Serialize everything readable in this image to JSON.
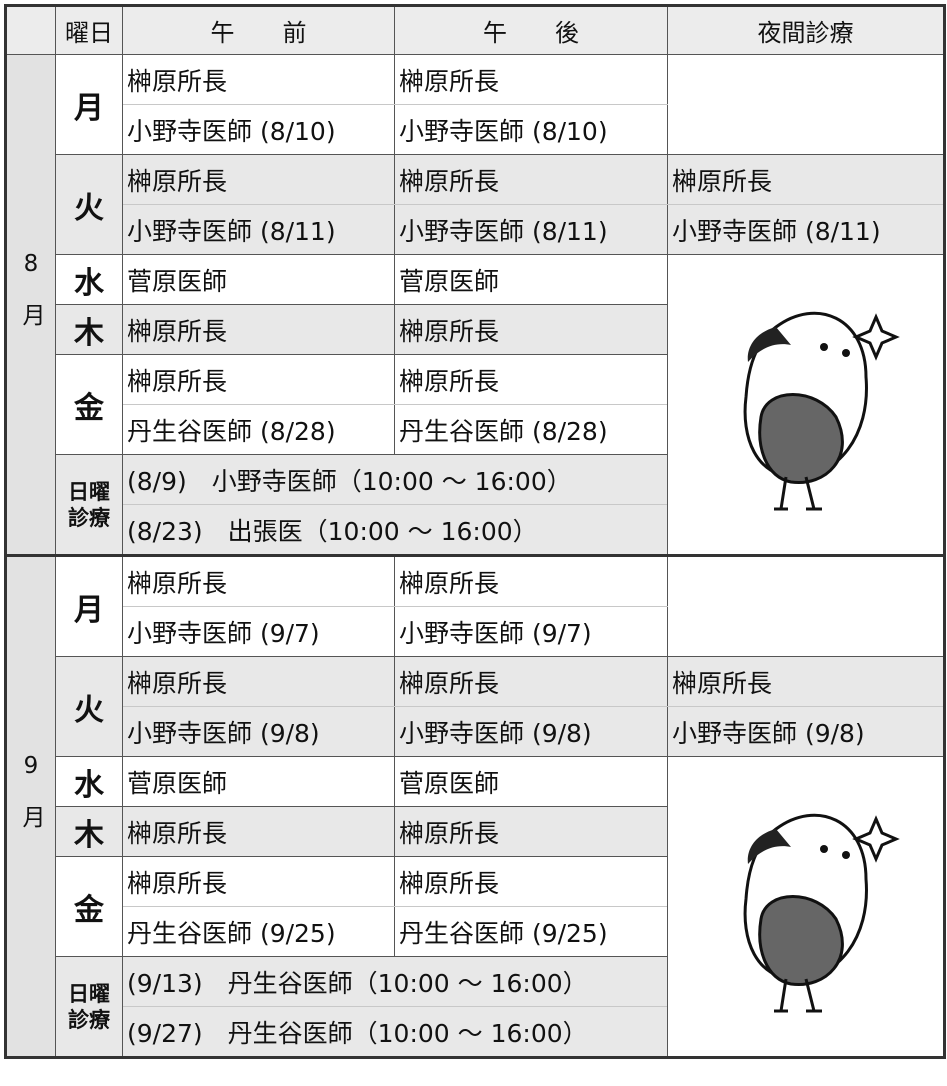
{
  "header": [
    "曜日",
    "午　　前",
    "午　　後",
    "夜間診療"
  ],
  "months": [
    {
      "label": "8月",
      "days": [
        {
          "day": "月",
          "am": [
            "榊原所長",
            "小野寺医師 (8/10)"
          ],
          "pm": [
            "榊原所長",
            "小野寺医師 (8/10)"
          ],
          "night": []
        },
        {
          "day": "火",
          "am": [
            "榊原所長",
            "小野寺医師 (8/11)"
          ],
          "pm": [
            "榊原所長",
            "小野寺医師 (8/11)"
          ],
          "night": [
            "榊原所長",
            "小野寺医師 (8/11)"
          ]
        },
        {
          "day": "水",
          "am": [
            "菅原医師"
          ],
          "pm": [
            "菅原医師"
          ]
        },
        {
          "day": "木",
          "am": [
            "榊原所長"
          ],
          "pm": [
            "榊原所長"
          ]
        },
        {
          "day": "金",
          "am": [
            "榊原所長",
            "丹生谷医師 (8/28)"
          ],
          "pm": [
            "榊原所長",
            "丹生谷医師 (8/28)"
          ]
        }
      ],
      "sunday": {
        "day": "日曜診療",
        "entries": [
          "(8/9)　小野寺医師（10:00 ～ 16:00）",
          "(8/23)　出張医（10:00 ～ 16:00）"
        ]
      }
    },
    {
      "label": "9月",
      "days": [
        {
          "day": "月",
          "am": [
            "榊原所長",
            "小野寺医師 (9/7)"
          ],
          "pm": [
            "榊原所長",
            "小野寺医師 (9/7)"
          ],
          "night": []
        },
        {
          "day": "火",
          "am": [
            "榊原所長",
            "小野寺医師 (9/8)"
          ],
          "pm": [
            "榊原所長",
            "小野寺医師 (9/8)"
          ],
          "night": [
            "榊原所長",
            "小野寺医師 (9/8)"
          ]
        },
        {
          "day": "水",
          "am": [
            "菅原医師"
          ],
          "pm": [
            "菅原医師"
          ]
        },
        {
          "day": "木",
          "am": [
            "榊原所長"
          ],
          "pm": [
            "榊原所長"
          ]
        },
        {
          "day": "金",
          "am": [
            "榊原所長",
            "丹生谷医師 (9/25)"
          ],
          "pm": [
            "榊原所長",
            "丹生谷医師 (9/25)"
          ]
        }
      ],
      "sunday": {
        "day": "日曜診療",
        "entries": [
          "(9/13)　丹生谷医師（10:00 ～ 16:00）",
          "(9/27)　丹生谷医師（10:00 ～ 16:00）"
        ]
      }
    }
  ]
}
